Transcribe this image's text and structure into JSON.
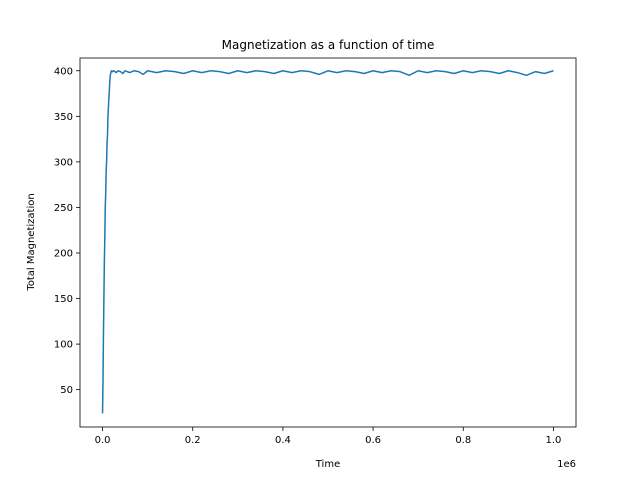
{
  "chart_data": {
    "type": "line",
    "title": "Magnetization as a function of time",
    "xlabel": "Time",
    "ylabel": "Total Magnetization",
    "x_offset_text": "1e6",
    "xlim": [
      -50000,
      1050000
    ],
    "ylim": [
      9,
      414
    ],
    "xticks": [
      {
        "value": 0,
        "label": "0.0"
      },
      {
        "value": 200000,
        "label": "0.2"
      },
      {
        "value": 400000,
        "label": "0.4"
      },
      {
        "value": 600000,
        "label": "0.6"
      },
      {
        "value": 800000,
        "label": "0.8"
      },
      {
        "value": 1000000,
        "label": "1.0"
      }
    ],
    "yticks": [
      {
        "value": 50,
        "label": "50"
      },
      {
        "value": 100,
        "label": "100"
      },
      {
        "value": 150,
        "label": "150"
      },
      {
        "value": 200,
        "label": "200"
      },
      {
        "value": 250,
        "label": "250"
      },
      {
        "value": 300,
        "label": "300"
      },
      {
        "value": 350,
        "label": "350"
      },
      {
        "value": 400,
        "label": "400"
      }
    ],
    "grid": false,
    "legend": "none",
    "line_color": "#1f77b4",
    "series": [
      {
        "x": [
          0,
          1000,
          2000,
          3000,
          4000,
          5000,
          6000,
          7000,
          8000,
          9000,
          10000,
          11000,
          12000,
          13000,
          14000,
          15000,
          16000,
          17000,
          18000,
          19000,
          20000,
          22000,
          25000,
          30000,
          35000,
          40000,
          45000,
          50000,
          60000,
          70000,
          80000,
          90000,
          100000,
          120000,
          140000,
          160000,
          180000,
          200000,
          220000,
          240000,
          260000,
          280000,
          300000,
          320000,
          340000,
          360000,
          380000,
          400000,
          420000,
          440000,
          460000,
          480000,
          500000,
          520000,
          540000,
          560000,
          580000,
          600000,
          620000,
          640000,
          660000,
          680000,
          700000,
          720000,
          740000,
          760000,
          780000,
          800000,
          820000,
          840000,
          860000,
          880000,
          900000,
          920000,
          940000,
          960000,
          980000,
          1000000
        ],
        "y": [
          24,
          60,
          110,
          150,
          190,
          215,
          250,
          265,
          290,
          300,
          320,
          330,
          350,
          360,
          370,
          378,
          388,
          394,
          397,
          399,
          400,
          399,
          400,
          398,
          400,
          399,
          397,
          400,
          398,
          400,
          399,
          396,
          400,
          398,
          400,
          399,
          397,
          400,
          398,
          400,
          399,
          397,
          400,
          398,
          400,
          399,
          397,
          400,
          398,
          400,
          399,
          396,
          400,
          398,
          400,
          399,
          397,
          400,
          398,
          400,
          399,
          395,
          400,
          398,
          400,
          399,
          397,
          400,
          398,
          400,
          399,
          397,
          400,
          398,
          395,
          399,
          397,
          400
        ]
      }
    ]
  }
}
